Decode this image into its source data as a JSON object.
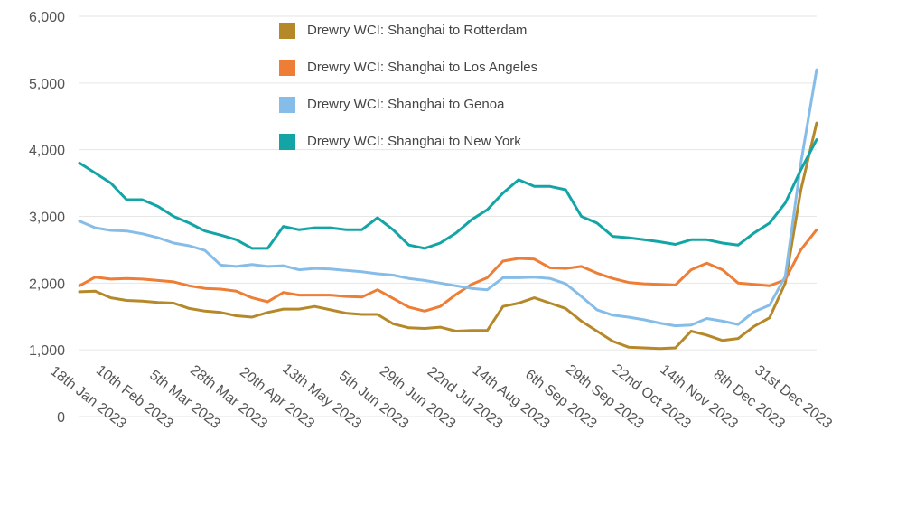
{
  "chart_data": {
    "type": "line",
    "categories": [
      null,
      null,
      "18th Jan 2023",
      null,
      null,
      "10th Feb 2023",
      null,
      null,
      "5th Mar 2023",
      null,
      null,
      "28th Mar 2023",
      null,
      null,
      "20th Apr 2023",
      null,
      null,
      "13th May 2023",
      null,
      null,
      "5th Jun 2023",
      null,
      null,
      "29th Jun 2023",
      null,
      null,
      "22nd Jul 2023",
      null,
      null,
      "14th Aug 2023",
      null,
      null,
      "6th Sep 2023",
      null,
      null,
      "29th Sep 2023",
      null,
      null,
      "22nd Oct 2023",
      null,
      null,
      "14th Nov 2023",
      null,
      null,
      "8th Dec 2023",
      null,
      null,
      "31st Dec 2023"
    ],
    "series": [
      {
        "name": "Drewry WCI: Shanghai to Rotterdam",
        "color": "#b5892a",
        "values": [
          1870,
          1880,
          1780,
          1740,
          1730,
          1710,
          1700,
          1620,
          1580,
          1560,
          1510,
          1490,
          1560,
          1610,
          1610,
          1650,
          1600,
          1550,
          1530,
          1530,
          1390,
          1330,
          1320,
          1340,
          1280,
          1290,
          1290,
          1650,
          1700,
          1780,
          1700,
          1620,
          1430,
          1280,
          1130,
          1040,
          1030,
          1020,
          1030,
          1280,
          1220,
          1140,
          1170,
          1350,
          1480,
          2000,
          3400,
          4400
        ]
      },
      {
        "name": "Drewry WCI: Shanghai to Los Angeles",
        "color": "#ee7d35",
        "values": [
          1960,
          2090,
          2060,
          2070,
          2060,
          2040,
          2020,
          1960,
          1920,
          1910,
          1880,
          1780,
          1720,
          1860,
          1820,
          1820,
          1820,
          1800,
          1790,
          1900,
          1770,
          1640,
          1580,
          1650,
          1830,
          1980,
          2080,
          2330,
          2370,
          2360,
          2230,
          2220,
          2250,
          2150,
          2070,
          2010,
          1990,
          1980,
          1970,
          2200,
          2300,
          2200,
          2000,
          1980,
          1960,
          2050,
          2500,
          2800
        ]
      },
      {
        "name": "Drewry WCI: Shanghai to Genoa",
        "color": "#86bde8",
        "values": [
          2930,
          2830,
          2790,
          2780,
          2740,
          2680,
          2600,
          2560,
          2490,
          2270,
          2250,
          2280,
          2250,
          2260,
          2200,
          2220,
          2210,
          2190,
          2170,
          2140,
          2120,
          2070,
          2040,
          2000,
          1960,
          1920,
          1900,
          2080,
          2080,
          2090,
          2070,
          1990,
          1800,
          1600,
          1520,
          1490,
          1450,
          1400,
          1360,
          1370,
          1470,
          1430,
          1380,
          1570,
          1670,
          2100,
          3800,
          5200
        ]
      },
      {
        "name": "Drewry WCI: Shanghai to New York",
        "color": "#13a5a5",
        "values": [
          3800,
          3650,
          3500,
          3250,
          3250,
          3150,
          3000,
          2900,
          2780,
          2720,
          2650,
          2520,
          2520,
          2850,
          2800,
          2830,
          2830,
          2800,
          2800,
          2980,
          2800,
          2570,
          2520,
          2600,
          2750,
          2950,
          3100,
          3350,
          3550,
          3450,
          3450,
          3400,
          3000,
          2900,
          2700,
          2680,
          2650,
          2620,
          2580,
          2650,
          2650,
          2600,
          2570,
          2750,
          2900,
          3200,
          3700,
          4150
        ]
      }
    ],
    "ylim": [
      0,
      6000
    ],
    "yticks": [
      0,
      {
        "value": 1000,
        "label": "1,000"
      },
      {
        "value": 2000,
        "label": "2,000"
      },
      {
        "value": 3000,
        "label": "3,000"
      },
      {
        "value": 4000,
        "label": "4,000"
      },
      {
        "value": 5000,
        "label": "5,000"
      },
      {
        "value": 6000,
        "label": "6,000"
      }
    ],
    "grid": true,
    "legend": "top"
  }
}
